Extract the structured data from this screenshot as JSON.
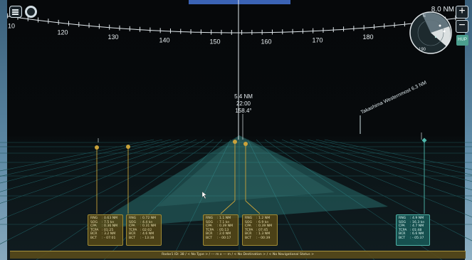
{
  "header": {
    "range": "8.0 NM",
    "zoom_in": "+",
    "zoom_out": "−",
    "view_mode": "HUP"
  },
  "compass": {
    "ticks": [
      "10",
      "120",
      "130",
      "140",
      "150",
      "160",
      "170",
      "180",
      "190"
    ],
    "minimap_heading": "190",
    "minimap_label_n": "N"
  },
  "cursor_readout": {
    "range": "5.4 NM",
    "time": "22:00",
    "bearing": "158.4°"
  },
  "landmark": {
    "label": "Takashima Westernmost 6.3 NM"
  },
  "targets": [
    {
      "rng": "0.63 NM",
      "sog": "7.5 kn",
      "cpa": "0.36 NM",
      "tcpa": "01:25",
      "bcr": "3.2 NM",
      "bct": "- 07:01",
      "style": "amber"
    },
    {
      "rng": "0.72 NM",
      "sog": "4.4 kn",
      "cpa": "0.31 NM",
      "tcpa": "02:02",
      "bcr": "4.6 NM",
      "bct": "- 13:38",
      "style": "amber"
    },
    {
      "rng": "1.1 NM",
      "sog": "7.1 kn",
      "cpa": "0.39 NM",
      "tcpa": "05:13",
      "bcr": "2.0 NM",
      "bct": "- 00:17",
      "style": "amber"
    },
    {
      "rng": "1.2 NM",
      "sog": "6.9 kn",
      "cpa": "0.39 NM",
      "tcpa": "07:45",
      "bcr": "1.3 NM",
      "bct": "- 00:39",
      "style": "amber"
    },
    {
      "rng": "4.9 NM",
      "sog": "16.3 kn",
      "cpa": "4.7 NM",
      "tcpa": "01:48",
      "bcr": "6.6 NM",
      "bct": "- 05:37",
      "style": "cyan"
    }
  ],
  "labels": {
    "rng": "RNG",
    "sog": "SOG",
    "cpa": "CPA",
    "tcpa": "TCPA",
    "bcr": "BCR",
    "bct": "BCT"
  },
  "status_bar": {
    "text": "Radar1 ID: 38  /  < No Type >  /  --- m x --- m  /  < No Destination >  /  < No Navigational Status >"
  },
  "colors": {
    "amber": "#c9a23a",
    "cyan": "#4fb9ad",
    "scale": "#dfe6ea",
    "grid": "#1e5b5f"
  }
}
